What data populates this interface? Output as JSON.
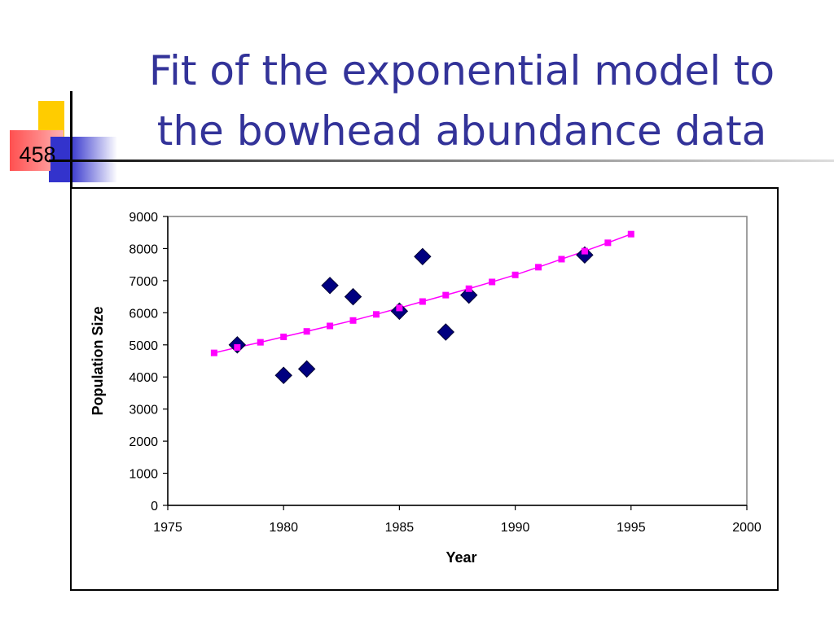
{
  "slide": {
    "title_line1": "Fit of the exponential model to",
    "title_line2": "the bowhead abundance data",
    "slide_number": "458"
  },
  "colors": {
    "title": "#333399",
    "observed": "#000080",
    "fitted": "#ff00ff",
    "deco_yellow": "#ffcc00",
    "deco_red": "#ff5050",
    "deco_blue": "#3333cc"
  },
  "chart_data": {
    "type": "scatter",
    "title": "",
    "xlabel": "Year",
    "ylabel": "Population Size",
    "xlim": [
      1975,
      2000
    ],
    "ylim": [
      0,
      9000
    ],
    "xticks": [
      1975,
      1980,
      1985,
      1990,
      1995,
      2000
    ],
    "yticks": [
      0,
      1000,
      2000,
      3000,
      4000,
      5000,
      6000,
      7000,
      8000,
      9000
    ],
    "grid": false,
    "legend": "none",
    "series": [
      {
        "marker": "diamond",
        "color": "#000080",
        "x": [
          1978,
          1980,
          1981,
          1982,
          1983,
          1985,
          1986,
          1987,
          1988,
          1993
        ],
        "y": [
          5000,
          4050,
          4250,
          6850,
          6500,
          6050,
          7750,
          5400,
          6550,
          7800
        ]
      },
      {
        "marker": "square",
        "line": true,
        "color": "#ff00ff",
        "x": [
          1977,
          1978,
          1979,
          1980,
          1981,
          1982,
          1983,
          1984,
          1985,
          1986,
          1987,
          1988,
          1989,
          1990,
          1991,
          1992,
          1993,
          1994,
          1995
        ],
        "y": [
          4750,
          4920,
          5080,
          5250,
          5420,
          5590,
          5760,
          5950,
          6150,
          6350,
          6550,
          6750,
          6960,
          7180,
          7420,
          7670,
          7920,
          8180,
          8450
        ]
      }
    ]
  }
}
